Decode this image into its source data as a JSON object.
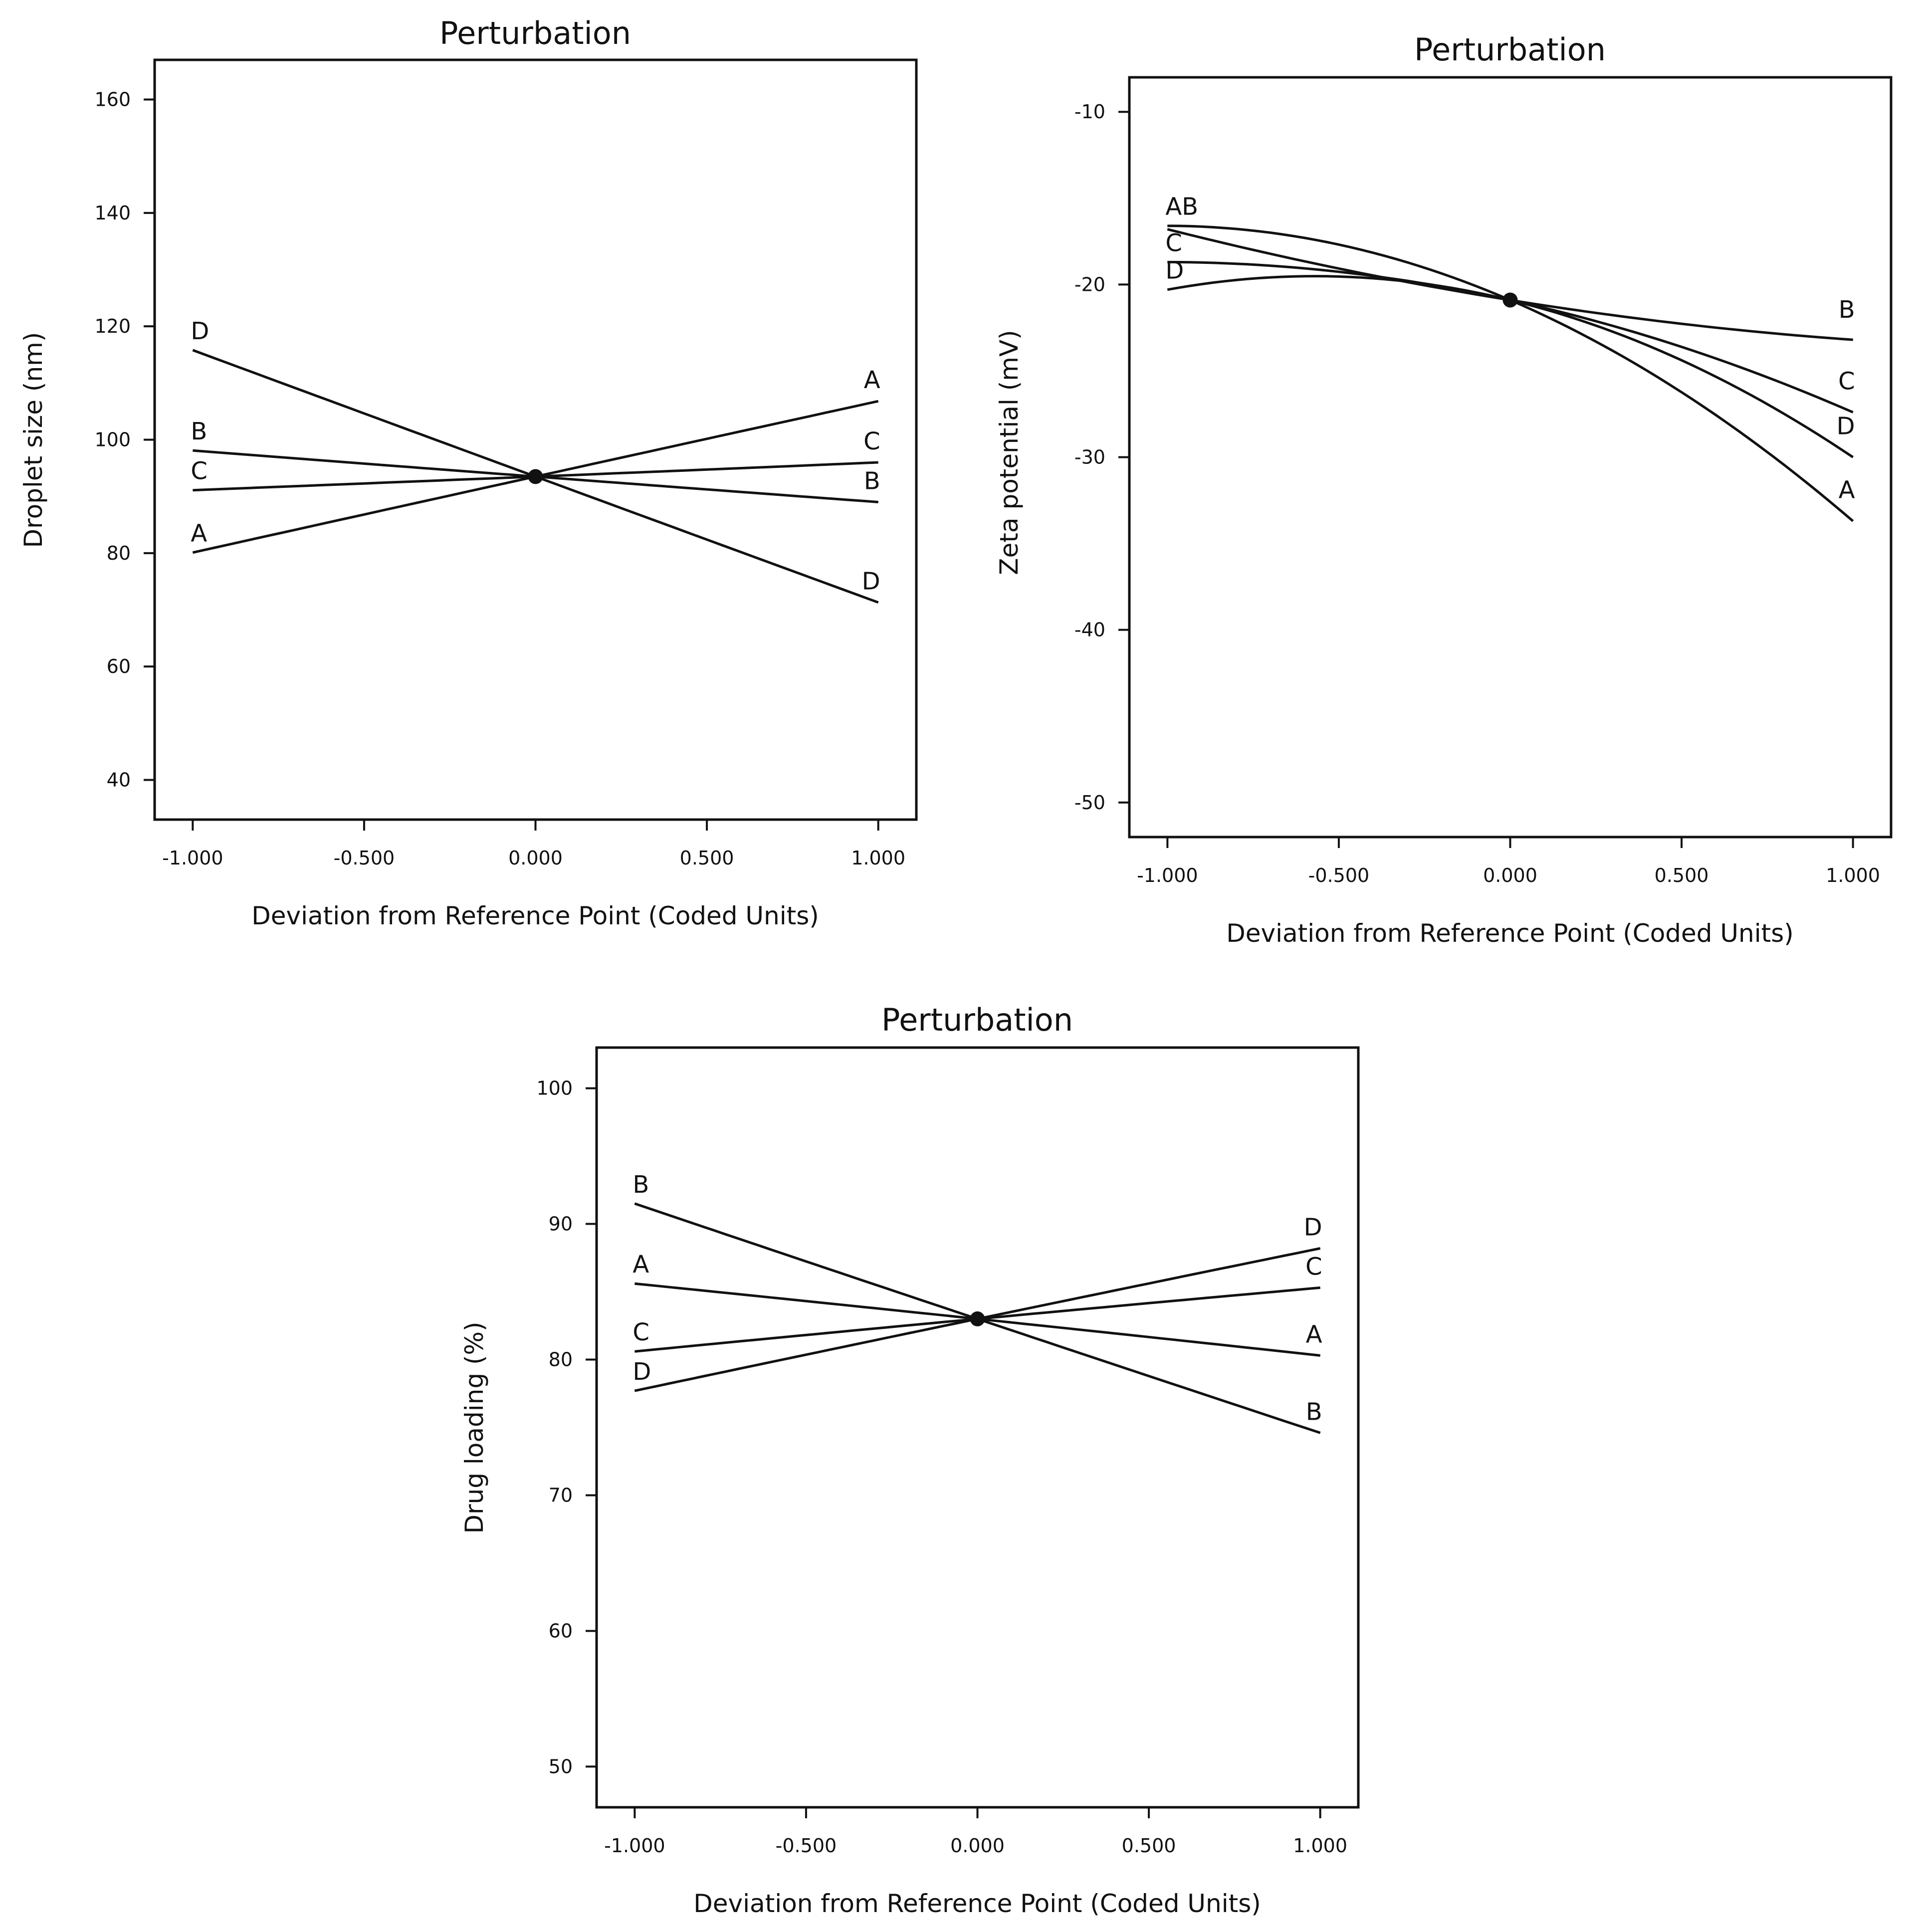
{
  "chart_data": [
    {
      "type": "line",
      "title": "Perturbation",
      "xlabel": "Deviation from Reference Point (Coded Units)",
      "ylabel": "Droplet size (nm)",
      "xlim": [
        -1.0,
        1.0
      ],
      "ylim": [
        33,
        167
      ],
      "x_ticks": [
        -1.0,
        -0.5,
        0.0,
        0.5,
        1.0
      ],
      "x_tick_labels": [
        "-1.000",
        "-0.500",
        "0.000",
        "0.500",
        "1.000"
      ],
      "y_ticks": [
        40,
        60,
        80,
        100,
        120,
        140,
        160
      ],
      "y_tick_labels": [
        "40",
        "60",
        "80",
        "100",
        "120",
        "140",
        "160"
      ],
      "reference_point": {
        "x": 0,
        "y": 93.5
      },
      "series": [
        {
          "name": "A",
          "values": [
            80.1,
            93.5,
            106.8
          ],
          "label_left": "A",
          "label_right": "A"
        },
        {
          "name": "B",
          "values": [
            98.1,
            93.5,
            89.0
          ],
          "label_left": "B",
          "label_right": "B"
        },
        {
          "name": "C",
          "values": [
            91.1,
            93.5,
            96.0
          ],
          "label_left": "C",
          "label_right": "C"
        },
        {
          "name": "D",
          "values": [
            115.8,
            93.5,
            71.3
          ],
          "label_left": "D",
          "label_right": "D"
        }
      ]
    },
    {
      "type": "line",
      "title": "Perturbation",
      "xlabel": "Deviation from Reference Point (Coded Units)",
      "ylabel": "Zeta potential (mV)",
      "xlim": [
        -1.0,
        1.0
      ],
      "ylim": [
        -52,
        -8
      ],
      "x_ticks": [
        -1.0,
        -0.5,
        0.0,
        0.5,
        1.0
      ],
      "x_tick_labels": [
        "-1.000",
        "-0.500",
        "0.000",
        "0.500",
        "1.000"
      ],
      "y_ticks": [
        -50,
        -40,
        -30,
        -20,
        -10
      ],
      "y_tick_labels": [
        "-50",
        "-40",
        "-30",
        "-20",
        "-10"
      ],
      "reference_point": {
        "x": 0,
        "y": -20.9
      },
      "series": [
        {
          "name": "A",
          "values": [
            -16.6,
            -20.9,
            -33.7
          ],
          "label_left": "AB",
          "label_right": "A"
        },
        {
          "name": "B",
          "values": [
            -16.8,
            -20.9,
            -23.2
          ],
          "label_left": "",
          "label_right": "B"
        },
        {
          "name": "C",
          "values": [
            -18.7,
            -20.9,
            -27.4
          ],
          "label_left": "C",
          "label_right": "C"
        },
        {
          "name": "D",
          "values": [
            -20.3,
            -20.9,
            -30.0
          ],
          "label_left": "D",
          "label_right": "D"
        }
      ]
    },
    {
      "type": "line",
      "title": "Perturbation",
      "xlabel": "Deviation from Reference Point (Coded Units)",
      "ylabel": "Drug loading (%)",
      "xlim": [
        -1.0,
        1.0
      ],
      "ylim": [
        47,
        103
      ],
      "x_ticks": [
        -1.0,
        -0.5,
        0.0,
        0.5,
        1.0
      ],
      "x_tick_labels": [
        "-1.000",
        "-0.500",
        "0.000",
        "0.500",
        "1.000"
      ],
      "y_ticks": [
        50,
        60,
        70,
        80,
        90,
        100
      ],
      "y_tick_labels": [
        "50",
        "60",
        "70",
        "80",
        "90",
        "100"
      ],
      "reference_point": {
        "x": 0,
        "y": 83.0
      },
      "series": [
        {
          "name": "A",
          "values": [
            85.6,
            83.0,
            80.3
          ],
          "label_left": "A",
          "label_right": "A"
        },
        {
          "name": "B",
          "values": [
            91.5,
            83.0,
            74.6
          ],
          "label_left": "B",
          "label_right": "B"
        },
        {
          "name": "C",
          "values": [
            80.6,
            83.0,
            85.3
          ],
          "label_left": "C",
          "label_right": "C"
        },
        {
          "name": "D",
          "values": [
            77.7,
            83.0,
            88.2
          ],
          "label_left": "D",
          "label_right": "D"
        }
      ]
    }
  ]
}
